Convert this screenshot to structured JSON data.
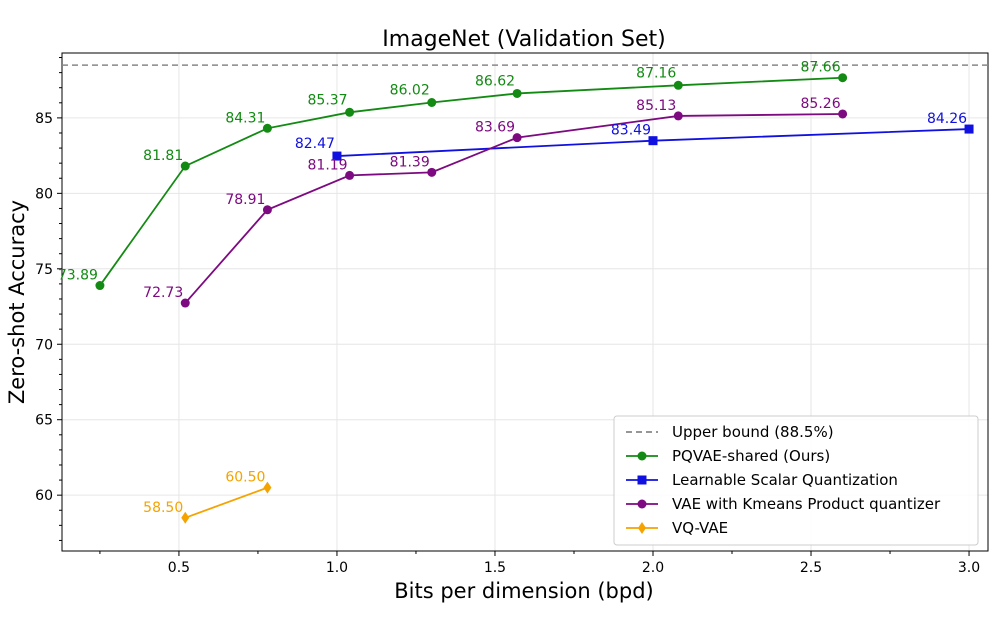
{
  "chart_data": {
    "type": "line",
    "title": "ImageNet (Validation Set)",
    "xlabel": "Bits per dimension (bpd)",
    "ylabel": "Zero-shot Accuracy",
    "xlim": [
      0.13,
      3.06
    ],
    "ylim": [
      56.3,
      89.3
    ],
    "xticks": [
      0.5,
      1.0,
      1.5,
      2.0,
      2.5,
      3.0
    ],
    "xtick_labels": [
      "0.5",
      "1.0",
      "1.5",
      "2.0",
      "2.5",
      "3.0"
    ],
    "yticks": [
      60,
      65,
      70,
      75,
      80,
      85
    ],
    "ytick_labels": [
      "60",
      "65",
      "70",
      "75",
      "80",
      "85"
    ],
    "grid": true,
    "legend_position": "lower-right",
    "reference_line": {
      "name": "Upper bound (88.5%)",
      "y": 88.5,
      "color": "#888888",
      "style": "dashed"
    },
    "series": [
      {
        "name": "PQVAE-shared (Ours)",
        "color": "#138a13",
        "marker": "circle",
        "x": [
          0.25,
          0.52,
          0.78,
          1.04,
          1.3,
          1.57,
          2.08,
          2.6
        ],
        "y": [
          73.89,
          81.81,
          84.31,
          85.37,
          86.02,
          86.62,
          87.16,
          87.66
        ],
        "labels": [
          "73.89",
          "81.81",
          "84.31",
          "85.37",
          "86.02",
          "86.62",
          "87.16",
          "87.66"
        ]
      },
      {
        "name": "Learnable Scalar Quantization",
        "color": "#1010e0",
        "marker": "square",
        "x": [
          1.0,
          2.0,
          3.0
        ],
        "y": [
          82.47,
          83.49,
          84.26
        ],
        "labels": [
          "82.47",
          "83.49",
          "84.26"
        ]
      },
      {
        "name": "VAE with Kmeans Product quantizer",
        "color": "#7d0a80",
        "marker": "circle",
        "x": [
          0.52,
          0.78,
          1.04,
          1.3,
          1.57,
          2.08,
          2.6
        ],
        "y": [
          72.73,
          78.91,
          81.19,
          81.39,
          83.69,
          85.13,
          85.26
        ],
        "labels": [
          "72.73",
          "78.91",
          "81.19",
          "81.39",
          "83.69",
          "85.13",
          "85.26"
        ]
      },
      {
        "name": "VQ-VAE",
        "color": "#f5a300",
        "marker": "diamond",
        "x": [
          0.52,
          0.78
        ],
        "y": [
          58.5,
          60.5
        ],
        "labels": [
          "58.50",
          "60.50"
        ]
      }
    ]
  }
}
